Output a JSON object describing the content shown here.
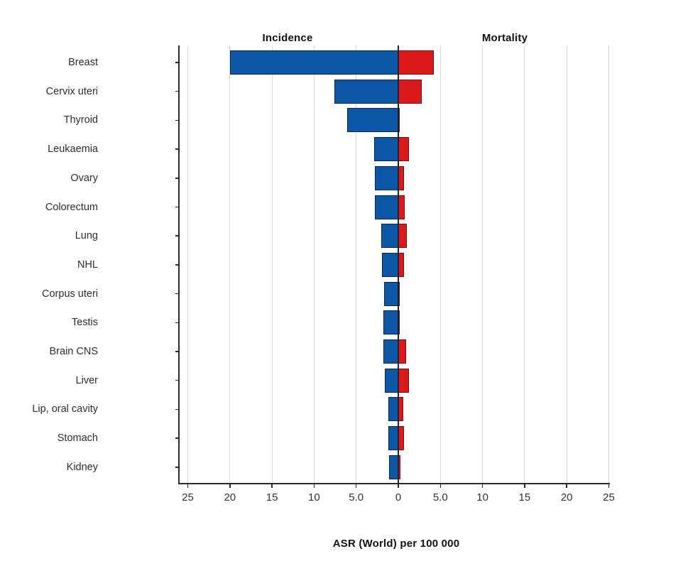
{
  "chart_data": {
    "type": "bar",
    "variant": "diverging-horizontal",
    "title_left": "Incidence",
    "title_right": "Mortality",
    "xlabel": "ASR (World) per 100 000",
    "categories": [
      "Breast",
      "Cervix uteri",
      "Thyroid",
      "Leukaemia",
      "Ovary",
      "Colorectum",
      "Lung",
      "NHL",
      "Corpus uteri",
      "Testis",
      "Brain CNS",
      "Liver",
      "Lip, oral cavity",
      "Stomach",
      "Kidney"
    ],
    "series": [
      {
        "name": "Incidence",
        "side": "left",
        "color": "#0b57a5",
        "values": [
          20.0,
          7.6,
          6.1,
          2.9,
          2.8,
          2.8,
          2.0,
          1.9,
          1.7,
          1.8,
          1.8,
          1.6,
          1.2,
          1.2,
          1.1
        ]
      },
      {
        "name": "Mortality",
        "side": "right",
        "color": "#dc1818",
        "values": [
          4.2,
          2.8,
          0.1,
          1.3,
          0.7,
          0.8,
          1.0,
          0.7,
          0.2,
          0.2,
          0.9,
          1.3,
          0.6,
          0.7,
          0.25
        ]
      }
    ],
    "x_tick_values": [
      -25,
      -20,
      -15,
      -10,
      -5,
      0,
      5,
      10,
      15,
      20,
      25
    ],
    "x_tick_labels": [
      "25",
      "20",
      "15",
      "10",
      "5.0",
      "0",
      "5.0",
      "10",
      "15",
      "20",
      "25"
    ],
    "axis_max_each_side": 25,
    "grid": true,
    "legend_position": "none",
    "colors": {
      "incidence_bar": "#0b57a5",
      "mortality_bar": "#dc1818",
      "grid": "#d9d9d9",
      "axis": "#2b2b2b",
      "zero_line": "#1c2230",
      "text": "#2e2e2e"
    }
  }
}
